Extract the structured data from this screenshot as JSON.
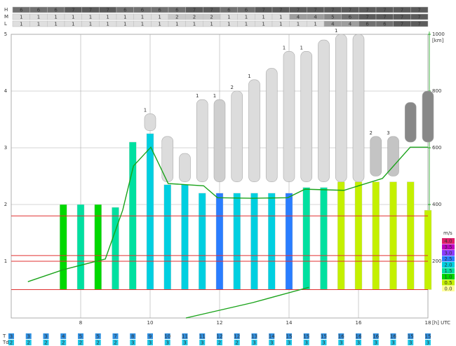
{
  "chart_data": {
    "type": "meteogram",
    "cloud_rows": {
      "labels": [
        "H",
        "M",
        "L"
      ],
      "values": [
        [
          6,
          6,
          6,
          7,
          7,
          7,
          6,
          6,
          6,
          6,
          7,
          7,
          6,
          6,
          7,
          7,
          7,
          7,
          7,
          7,
          7,
          7,
          7,
          7
        ],
        [
          1,
          1,
          1,
          1,
          1,
          1,
          1,
          1,
          1,
          2,
          2,
          2,
          1,
          1,
          1,
          1,
          4,
          4,
          5,
          6,
          7,
          7,
          7,
          7
        ],
        [
          1,
          1,
          1,
          1,
          1,
          1,
          1,
          1,
          1,
          1,
          1,
          1,
          1,
          1,
          1,
          1,
          1,
          1,
          4,
          4,
          6,
          6,
          7,
          7
        ]
      ]
    },
    "times": [
      6,
      6.5,
      7,
      7.5,
      8,
      8.5,
      9,
      9.5,
      10,
      10.5,
      11,
      11.5,
      12,
      12.5,
      13,
      13.5,
      14,
      14.5,
      15,
      15.5,
      16,
      16.5,
      17,
      17.5,
      18
    ],
    "xlim": [
      6,
      18
    ],
    "xticks": [
      8,
      10,
      12,
      14,
      16,
      18
    ],
    "x_unit": "[h] UTC",
    "ylim": [
      0,
      5
    ],
    "yticks": [
      1,
      2,
      3,
      4,
      5
    ],
    "y2lim": [
      0,
      1000
    ],
    "y2ticks": [
      200,
      400,
      600,
      800,
      1000
    ],
    "y2_unit": "[km]",
    "grid": true,
    "thermals": {
      "base": 0.5,
      "tops": [
        null,
        null,
        null,
        2.0,
        2.0,
        2.0,
        1.95,
        3.1,
        3.25,
        2.35,
        2.35,
        2.2,
        2.2,
        2.2,
        2.2,
        2.2,
        2.2,
        2.3,
        2.3,
        2.4,
        2.4,
        2.4,
        2.4,
        2.4,
        1.9
      ],
      "climb": [
        null,
        null,
        null,
        1.0,
        1.5,
        1.0,
        1.5,
        1.5,
        2.0,
        2.0,
        2.0,
        2.0,
        2.5,
        2.0,
        2.0,
        2.0,
        2.5,
        1.5,
        1.5,
        0.5,
        0.5,
        0.5,
        0.5,
        0.5,
        0.5
      ]
    },
    "clouds": [
      {
        "x": 10,
        "base": 3.3,
        "top": 3.6,
        "label": "1",
        "color": "#dcdcdc"
      },
      {
        "x": 10.5,
        "base": 2.4,
        "top": 3.2,
        "label": null,
        "color": "#dcdcdc"
      },
      {
        "x": 11,
        "base": 2.4,
        "top": 2.9,
        "label": null,
        "color": "#dcdcdc"
      },
      {
        "x": 11.5,
        "base": 2.4,
        "top": 3.85,
        "label": "1",
        "color": "#dcdcdc"
      },
      {
        "x": 12,
        "base": 2.4,
        "top": 3.85,
        "label": "1",
        "color": "#cfcfcf"
      },
      {
        "x": 12.5,
        "base": 2.4,
        "top": 4.0,
        "label": "2",
        "color": "#dcdcdc"
      },
      {
        "x": 13,
        "base": 2.4,
        "top": 4.2,
        "label": "1",
        "color": "#dcdcdc"
      },
      {
        "x": 13.5,
        "base": 2.4,
        "top": 4.4,
        "label": null,
        "color": "#dcdcdc"
      },
      {
        "x": 14,
        "base": 2.4,
        "top": 4.7,
        "label": "1",
        "color": "#dcdcdc"
      },
      {
        "x": 14.5,
        "base": 2.4,
        "top": 4.7,
        "label": "1",
        "color": "#dcdcdc"
      },
      {
        "x": 15,
        "base": 2.4,
        "top": 4.9,
        "label": null,
        "color": "#dcdcdc"
      },
      {
        "x": 15.5,
        "base": 2.4,
        "top": 5.0,
        "label": "1",
        "color": "#dcdcdc"
      },
      {
        "x": 16,
        "base": 2.4,
        "top": 5.0,
        "label": null,
        "color": "#dcdcdc"
      },
      {
        "x": 16.5,
        "base": 2.5,
        "top": 3.2,
        "label": "2",
        "color": "#c4c4c4"
      },
      {
        "x": 17,
        "base": 2.5,
        "top": 3.2,
        "label": "3",
        "color": "#c4c4c4"
      },
      {
        "x": 17.5,
        "base": 3.1,
        "top": 3.8,
        "label": null,
        "color": "#888888"
      },
      {
        "x": 18,
        "base": 3.1,
        "top": 4.0,
        "label": null,
        "color": "#888888"
      }
    ],
    "lines": [
      {
        "color": "#1aa31a",
        "x": [
          6.48,
          7.49,
          8.71,
          9.21,
          9.52,
          10.02,
          10.52,
          11.54,
          11.94,
          12.95,
          13.96,
          14.46,
          15.58,
          16.69,
          17.49,
          18
        ],
        "values": [
          0.64,
          0.85,
          1.04,
          1.9,
          2.68,
          3.01,
          2.37,
          2.33,
          2.12,
          2.11,
          2.12,
          2.27,
          2.25,
          2.46,
          3.01,
          3.01
        ]
      },
      {
        "color": "#1aa31a",
        "x": [
          11.03,
          12.95,
          14.57
        ],
        "values": [
          0,
          0.27,
          0.54
        ]
      }
    ],
    "red_lines": {
      "color": "#e03030",
      "values": [
        0.5,
        1.0,
        1.1,
        1.8
      ]
    },
    "legend": {
      "title": "m/s",
      "levels": [
        4.0,
        3.5,
        3.0,
        2.5,
        2.0,
        1.5,
        1.0,
        0.5,
        0.0
      ],
      "label_texts": [
        "4.0",
        "3.5",
        "3.0",
        "2.5",
        "2.0",
        "1.5",
        "1.0",
        "0.5",
        "0.0"
      ],
      "colors": [
        "#e0206a",
        "#c000c0",
        "#8a3cff",
        "#2a7dff",
        "#00cfe0",
        "#00e0a0",
        "#00d800",
        "#c4f000",
        "#ffff99"
      ]
    },
    "surface": {
      "labels": [
        "T",
        "Td"
      ],
      "colors": [
        "#2f8fe0",
        "#22c8e8"
      ],
      "rows": [
        [
          3,
          3,
          3,
          4,
          5,
          5,
          7,
          8,
          9,
          10,
          11,
          11,
          12,
          12,
          13,
          14,
          15,
          15,
          15,
          16,
          16,
          16,
          16,
          15,
          15
        ],
        [
          2,
          2,
          2,
          2,
          2,
          2,
          2,
          3,
          3,
          3,
          3,
          3,
          2,
          2,
          3,
          3,
          3,
          3,
          3,
          3,
          3,
          3,
          3,
          3,
          3
        ]
      ]
    }
  }
}
